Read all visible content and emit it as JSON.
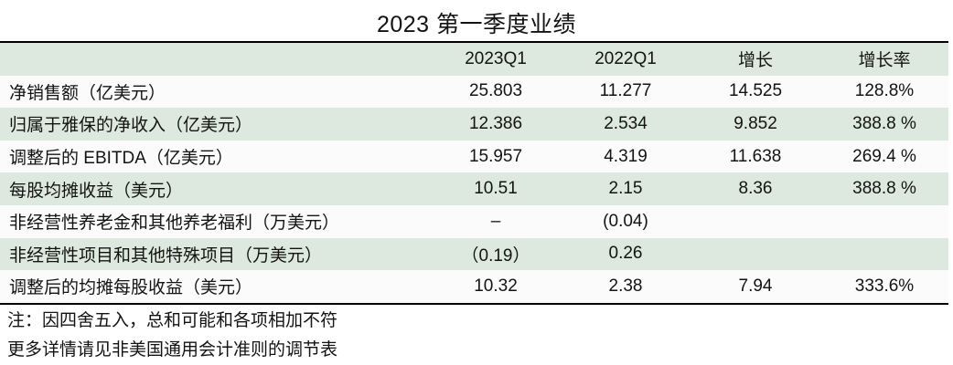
{
  "title": "2023 第一季度业绩",
  "chart_data": {
    "type": "table",
    "title": "2023 第一季度业绩",
    "columns": [
      "",
      "2023Q1",
      "2022Q1",
      "增长",
      "增长率"
    ],
    "rows": [
      [
        "净销售额（亿美元）",
        "25.803",
        "11.277",
        "14.525",
        "128.8%"
      ],
      [
        "归属于雅保的净收入（亿美元）",
        "12.386",
        "2.534",
        "9.852",
        "388.8 %"
      ],
      [
        "调整后的 EBITDA（亿美元）",
        "15.957",
        "4.319",
        "11.638",
        "269.4 %"
      ],
      [
        "每股均摊收益（美元）",
        "10.51",
        "2.15",
        "8.36",
        "388.8 %"
      ],
      [
        "非经营性养老金和其他养老福利（万美元）",
        "–",
        "(0.04)",
        "",
        ""
      ],
      [
        "非经营性项目和其他特殊项目（万美元）",
        "（0.19）",
        "0.26",
        "",
        ""
      ],
      [
        "调整后的均摊每股收益（美元）",
        "10.32",
        "2.38",
        "7.94",
        "333.6%"
      ]
    ],
    "notes": [
      "注：因四舍五入，总和可能和各项相加不符",
      "更多详情请见非美国通用会计准则的调节表"
    ],
    "layout": {
      "stripe_green": "#dde9de",
      "stripe_white": "#fafbfa",
      "rule_color": "#000000",
      "numeric_align": "center"
    }
  }
}
